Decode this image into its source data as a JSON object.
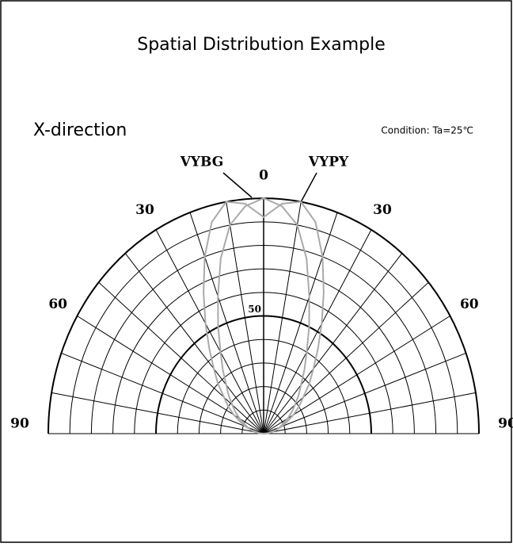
{
  "chart_data": {
    "type": "polar",
    "title": "Spatial Distribution Example",
    "subtitle": "X-direction",
    "annotation": "Condition: Ta=25℃",
    "angles": [
      -90,
      -85,
      -80,
      -75,
      -70,
      -65,
      -60,
      -55,
      -50,
      -45,
      -40,
      -35,
      -30,
      -25,
      -20,
      -15,
      -10,
      -5,
      0,
      5,
      10,
      15,
      20,
      25,
      30,
      35,
      40,
      45,
      50,
      55,
      60,
      65,
      70,
      75,
      80,
      85,
      90
    ],
    "series": [
      {
        "name": "VYBG",
        "color": "#aaaaaa",
        "values": [
          0,
          2,
          4,
          6,
          8,
          10,
          13,
          16,
          19,
          23,
          27,
          33,
          40,
          50,
          62,
          77,
          90,
          97,
          100,
          97,
          90,
          77,
          62,
          50,
          40,
          33,
          27,
          23,
          19,
          16,
          13,
          10,
          8,
          6,
          4,
          2,
          0
        ]
      },
      {
        "name": "VYPY",
        "color": "#aaaaaa",
        "values": [
          0,
          2,
          4,
          6,
          9,
          12,
          16,
          20,
          24,
          30,
          36,
          44,
          54,
          66,
          80,
          93,
          100,
          98,
          92,
          98,
          100,
          93,
          80,
          66,
          54,
          44,
          36,
          30,
          24,
          20,
          16,
          12,
          9,
          6,
          4,
          2,
          0
        ]
      }
    ],
    "rlim": [
      0,
      100
    ],
    "rticks": [
      10,
      20,
      30,
      40,
      50,
      60,
      70,
      80,
      90,
      100
    ],
    "rtick_labels": [
      50
    ],
    "bold_rings": [
      50,
      100
    ],
    "angle_ticks": [
      -90,
      -80,
      -70,
      -60,
      -50,
      -40,
      -30,
      -20,
      -10,
      0,
      10,
      20,
      30,
      40,
      50,
      60,
      70,
      80,
      90
    ],
    "angle_labels": [
      {
        "value": -90,
        "label": "90"
      },
      {
        "value": -60,
        "label": "60"
      },
      {
        "value": -30,
        "label": "30"
      },
      0,
      {
        "value": 30,
        "label": "30"
      },
      {
        "value": 60,
        "label": "60"
      },
      {
        "value": 90,
        "label": "90"
      }
    ]
  }
}
